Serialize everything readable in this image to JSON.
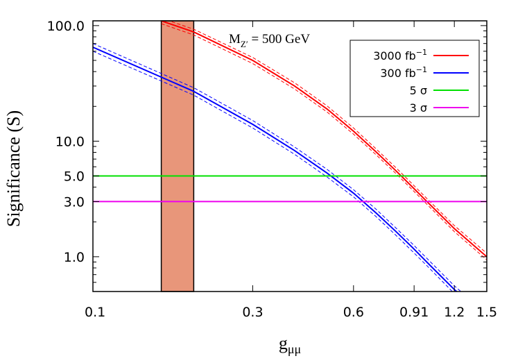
{
  "chart_data": {
    "type": "line",
    "xlabel_main": "g",
    "xlabel_sub": "μμ",
    "ylabel": "Significance (S)",
    "annotation": {
      "main": "M",
      "sub": "Z′",
      "rest": " = 500 GeV"
    },
    "x_scale": "log",
    "y_scale": "log",
    "xlim": [
      0.1,
      1.5
    ],
    "ylim": [
      0.5,
      110
    ],
    "x_ticks": [
      {
        "value": 0.1,
        "label": "0.1"
      },
      {
        "value": 0.3,
        "label": "0.3"
      },
      {
        "value": 0.6,
        "label": "0.6"
      },
      {
        "value": 0.91,
        "label": "0.91"
      },
      {
        "value": 1.2,
        "label": "1.2"
      },
      {
        "value": 1.5,
        "label": "1.5"
      }
    ],
    "y_ticks": [
      {
        "value": 1.0,
        "label": "1.0"
      },
      {
        "value": 3.0,
        "label": "3.0"
      },
      {
        "value": 5.0,
        "label": "5.0"
      },
      {
        "value": 10.0,
        "label": "10.0"
      },
      {
        "value": 100.0,
        "label": "100.0"
      }
    ],
    "excluded_band": {
      "x_from": 0.16,
      "x_to": 0.2,
      "color": "#e8967a"
    },
    "legend": {
      "position": "top-right"
    },
    "series": [
      {
        "name": "3000 fb",
        "name_sup": "−1",
        "color": "#ff0000",
        "x": [
          0.16,
          0.2,
          0.3,
          0.4,
          0.5,
          0.6,
          0.7,
          0.8,
          0.9,
          1.0,
          1.2,
          1.5
        ],
        "y": [
          110,
          88,
          50,
          30,
          19,
          12.2,
          8.1,
          5.6,
          4.0,
          2.95,
          1.75,
          1.0
        ],
        "band_upper": [
          116,
          93,
          53,
          32,
          20.2,
          13.0,
          8.6,
          5.95,
          4.25,
          3.13,
          1.86,
          1.07
        ],
        "band_lower": [
          104,
          83,
          47,
          28.3,
          17.9,
          11.5,
          7.65,
          5.3,
          3.78,
          2.79,
          1.65,
          0.94
        ]
      },
      {
        "name": "300 fb",
        "name_sup": "−1",
        "color": "#0000ff",
        "x": [
          0.1,
          0.2,
          0.3,
          0.4,
          0.5,
          0.6,
          0.7,
          0.8,
          0.9,
          1.0,
          1.2,
          1.5
        ],
        "y": [
          65,
          27,
          14,
          8.3,
          5.3,
          3.55,
          2.4,
          1.67,
          1.2,
          0.88,
          0.52,
          0.3
        ],
        "band_upper": [
          70,
          29,
          15.1,
          8.9,
          5.7,
          3.8,
          2.58,
          1.79,
          1.29,
          0.95,
          0.56,
          0.32
        ],
        "band_lower": [
          60,
          25,
          13,
          7.7,
          4.9,
          3.3,
          2.23,
          1.55,
          1.11,
          0.82,
          0.48,
          0.28
        ]
      },
      {
        "name": "5 σ",
        "color": "#00e000",
        "x": [
          0.1,
          1.5
        ],
        "y": [
          5,
          5
        ]
      },
      {
        "name": "3 σ",
        "color": "#ee00ee",
        "x": [
          0.1,
          1.5
        ],
        "y": [
          3,
          3
        ]
      }
    ]
  }
}
